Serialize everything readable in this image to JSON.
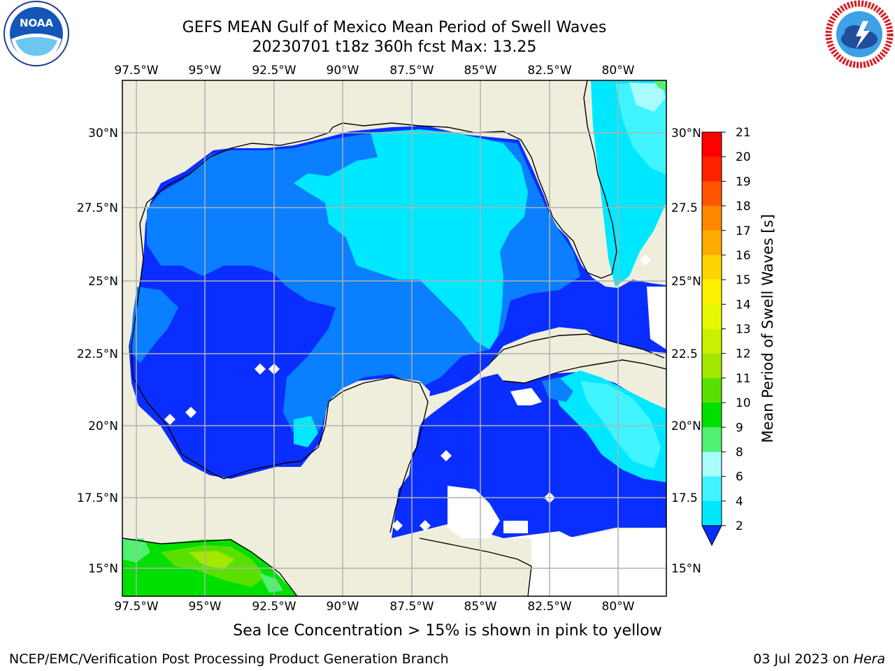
{
  "header": {
    "title_line1": "GEFS MEAN Gulf of Mexico Mean Period of Swell Waves",
    "title_line2": "20230701 t18z 360h fcst   Max: 13.25"
  },
  "logos": {
    "left": "noaa-logo",
    "right": "national-weather-service-logo"
  },
  "map": {
    "lon_labels": [
      "97.5°W",
      "95°W",
      "92.5°W",
      "90°W",
      "87.5°W",
      "85°W",
      "82.5°W",
      "80°W"
    ],
    "lat_labels_left": [
      "30°N",
      "27.5°N",
      "25°N",
      "22.5°N",
      "20°N",
      "17.5°N",
      "15°N"
    ],
    "lat_labels_right": [
      "30°N",
      "27.5",
      "25°N",
      "22.5",
      "20°N",
      "17.5",
      "15°N"
    ],
    "colors": {
      "land": "#efeedd",
      "gridline": "#b0b0b0",
      "no_data": "#ffffff"
    }
  },
  "colorbar": {
    "label": "Mean Period of Swell Waves [s]",
    "ticks": [
      "2",
      "4",
      "6",
      "8",
      "9",
      "10",
      "11",
      "12",
      "13",
      "14",
      "15",
      "16",
      "17",
      "18",
      "19",
      "20",
      "21"
    ],
    "colors": [
      "#0a2eff",
      "#0a7fff",
      "#00e8ff",
      "#40f4ff",
      "#a8fcfc",
      "#50f070",
      "#00e000",
      "#5ae000",
      "#a2e800",
      "#cbf000",
      "#e8f800",
      "#fff200",
      "#ffd400",
      "#ffaa00",
      "#ff8800",
      "#ff5500",
      "#ff2200",
      "#ff0000"
    ]
  },
  "footer": {
    "note": "Sea Ice Concentration > 15% is shown in pink to yellow",
    "left": "NCEP/EMC/Verification Post Processing Product Generation Branch",
    "right_prefix": "03 Jul 2023 on ",
    "right_host": "Hera"
  }
}
